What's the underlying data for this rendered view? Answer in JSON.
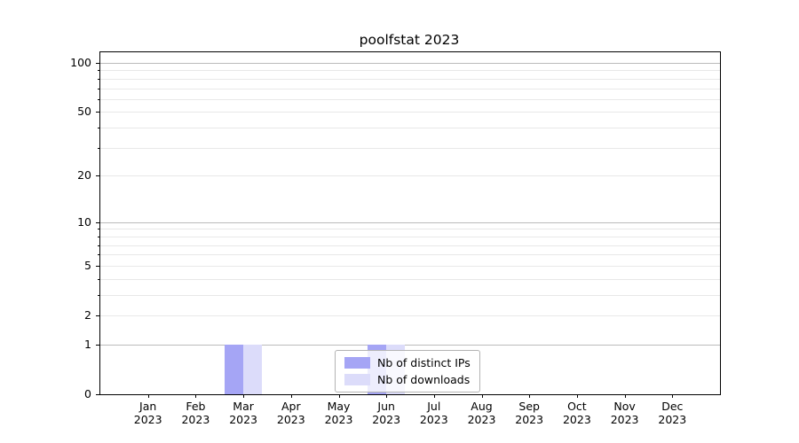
{
  "chart_data": {
    "type": "bar",
    "title": "poolfstat 2023",
    "months": [
      "Jan",
      "Feb",
      "Mar",
      "Apr",
      "May",
      "Jun",
      "Jul",
      "Aug",
      "Sep",
      "Oct",
      "Nov",
      "Dec"
    ],
    "year_label": "2023",
    "categories": [
      "Jan 2023",
      "Feb 2023",
      "Mar 2023",
      "Apr 2023",
      "May 2023",
      "Jun 2023",
      "Jul 2023",
      "Aug 2023",
      "Sep 2023",
      "Oct 2023",
      "Nov 2023",
      "Dec 2023"
    ],
    "series": [
      {
        "name": "Nb of distinct IPs",
        "color": "#a5a5f5",
        "values": [
          0,
          0,
          1,
          0,
          0,
          1,
          0,
          0,
          0,
          0,
          0,
          0
        ]
      },
      {
        "name": "Nb of downloads",
        "color": "#dcdcfa",
        "values": [
          0,
          0,
          1,
          0,
          0,
          1,
          0,
          0,
          0,
          0,
          0,
          0
        ]
      }
    ],
    "yscale": "log1p",
    "ylim": [
      0,
      116
    ],
    "yticks": [
      0,
      1,
      2,
      5,
      10,
      20,
      50,
      100
    ],
    "major_gridlines": [
      1,
      10,
      100
    ],
    "minor_gridlines": [
      2,
      3,
      4,
      5,
      6,
      7,
      8,
      9,
      20,
      30,
      40,
      50,
      60,
      70,
      80,
      90
    ],
    "grid": true,
    "legend_position": "lower center",
    "colors": {
      "major_grid": "#bbbbbb",
      "minor_grid": "#e8e8e8",
      "axis": "#000000"
    }
  }
}
